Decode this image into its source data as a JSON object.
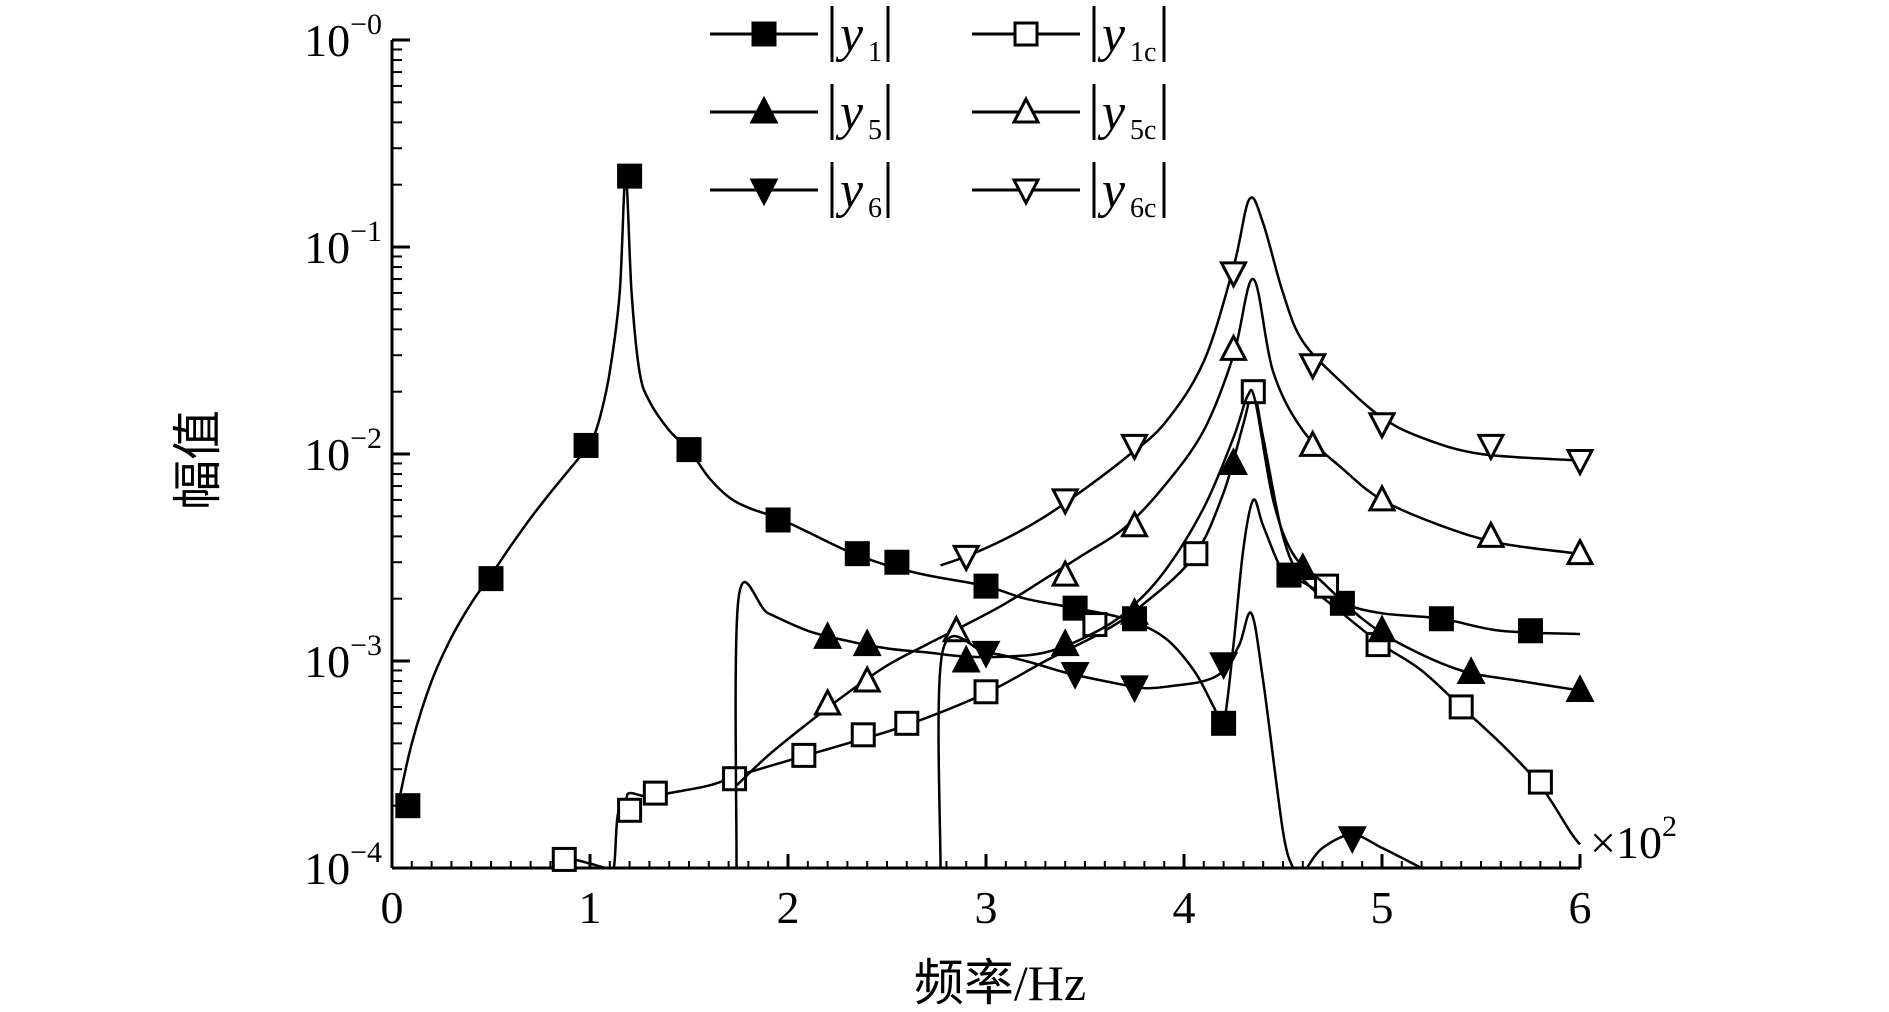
{
  "chart_data": {
    "type": "line",
    "title": "",
    "xlabel": "频率/Hz",
    "ylabel": "幅值",
    "x_multiplier": "×10",
    "x_multiplier_exp": "2",
    "xlim": [
      0,
      6
    ],
    "ylim": [
      0.0001,
      1
    ],
    "yscale": "log",
    "x_ticks": [
      {
        "value": 0,
        "label": "0"
      },
      {
        "value": 1,
        "label": "1"
      },
      {
        "value": 2,
        "label": "2"
      },
      {
        "value": 3,
        "label": "3"
      },
      {
        "value": 4,
        "label": "4"
      },
      {
        "value": 5,
        "label": "5"
      },
      {
        "value": 6,
        "label": "6"
      }
    ],
    "y_ticks": [
      {
        "value": 1,
        "base": "10",
        "exp": "−0"
      },
      {
        "value": 0.1,
        "base": "10",
        "exp": "−1"
      },
      {
        "value": 0.01,
        "base": "10",
        "exp": "−2"
      },
      {
        "value": 0.001,
        "base": "10",
        "exp": "−3"
      },
      {
        "value": 0.0001,
        "base": "10",
        "exp": "−4"
      }
    ],
    "grid": false,
    "legend_position": "top-center",
    "series": [
      {
        "name": "|y1|",
        "label_main": "y",
        "label_sub": "1",
        "marker": "square",
        "filled": true,
        "curve": [
          [
            0.03,
            0.0002
          ],
          [
            0.1,
            0.0004
          ],
          [
            0.2,
            0.0008
          ],
          [
            0.3,
            0.0013
          ],
          [
            0.4,
            0.0019
          ],
          [
            0.5,
            0.0026
          ],
          [
            0.6,
            0.0036
          ],
          [
            0.7,
            0.0049
          ],
          [
            0.8,
            0.0065
          ],
          [
            0.9,
            0.0085
          ],
          [
            0.95,
            0.0097
          ],
          [
            1.0,
            0.011
          ],
          [
            1.05,
            0.015
          ],
          [
            1.1,
            0.025
          ],
          [
            1.15,
            0.06
          ],
          [
            1.18,
            0.22
          ],
          [
            1.21,
            0.06
          ],
          [
            1.25,
            0.025
          ],
          [
            1.3,
            0.018
          ],
          [
            1.4,
            0.013
          ],
          [
            1.5,
            0.0105
          ],
          [
            1.6,
            0.0077
          ],
          [
            1.7,
            0.0062
          ],
          [
            1.8,
            0.0055
          ],
          [
            1.95,
            0.0049
          ],
          [
            2.1,
            0.0042
          ],
          [
            2.3,
            0.0034
          ],
          [
            2.5,
            0.0029
          ],
          [
            2.7,
            0.0026
          ],
          [
            3.0,
            0.0023
          ],
          [
            3.2,
            0.002
          ],
          [
            3.45,
            0.0018
          ],
          [
            3.7,
            0.0016
          ],
          [
            3.9,
            0.0013
          ],
          [
            4.05,
            0.0009
          ],
          [
            4.15,
            0.0006
          ],
          [
            4.2,
            0.0005
          ],
          [
            4.25,
            0.0012
          ],
          [
            4.3,
            0.0035
          ],
          [
            4.35,
            0.006
          ],
          [
            4.4,
            0.0045
          ],
          [
            4.5,
            0.0027
          ],
          [
            4.6,
            0.0024
          ],
          [
            4.8,
            0.0019
          ],
          [
            5.0,
            0.0017
          ],
          [
            5.3,
            0.0016
          ],
          [
            5.6,
            0.0014
          ],
          [
            6.0,
            0.00135
          ]
        ],
        "markers": [
          [
            0.08,
            0.0002
          ],
          [
            0.5,
            0.0025
          ],
          [
            0.98,
            0.011
          ],
          [
            1.2,
            0.22
          ],
          [
            1.5,
            0.0105
          ],
          [
            1.95,
            0.0048
          ],
          [
            2.35,
            0.0033
          ],
          [
            2.55,
            0.003
          ],
          [
            3.0,
            0.0023
          ],
          [
            3.45,
            0.0018
          ],
          [
            3.75,
            0.0016
          ],
          [
            4.2,
            0.0005
          ],
          [
            4.53,
            0.0026
          ],
          [
            4.8,
            0.0019
          ],
          [
            5.3,
            0.0016
          ],
          [
            5.75,
            0.0014
          ]
        ]
      },
      {
        "name": "|y1c|",
        "label_main": "y",
        "label_sub": "1c",
        "marker": "square",
        "filled": false,
        "curve": [
          [
            0.85,
            0.0001
          ],
          [
            0.9,
            0.00011
          ],
          [
            1.0,
            0.000105
          ],
          [
            1.08,
            0.0001
          ],
          [
            1.12,
            0.0001
          ],
          [
            1.14,
            0.00018
          ],
          [
            1.18,
            0.00021
          ],
          [
            1.2,
            0.00023
          ],
          [
            1.3,
            0.00022
          ],
          [
            1.4,
            0.00023
          ],
          [
            1.6,
            0.00025
          ],
          [
            1.75,
            0.00028
          ],
          [
            2.0,
            0.00033
          ],
          [
            2.3,
            0.0004
          ],
          [
            2.6,
            0.00049
          ],
          [
            3.0,
            0.0007
          ],
          [
            3.3,
            0.001
          ],
          [
            3.6,
            0.0014
          ],
          [
            3.8,
            0.0019
          ],
          [
            4.05,
            0.0032
          ],
          [
            4.2,
            0.0065
          ],
          [
            4.3,
            0.014
          ],
          [
            4.35,
            0.02
          ],
          [
            4.4,
            0.012
          ],
          [
            4.5,
            0.004
          ],
          [
            4.6,
            0.0025
          ],
          [
            4.8,
            0.0017
          ],
          [
            5.0,
            0.0012
          ],
          [
            5.2,
            0.0009
          ],
          [
            5.4,
            0.0006
          ],
          [
            5.6,
            0.0004
          ],
          [
            5.8,
            0.00025
          ],
          [
            5.95,
            0.00015
          ],
          [
            6.0,
            0.00013
          ]
        ],
        "markers": [
          [
            0.87,
            0.00011
          ],
          [
            1.2,
            0.00019
          ],
          [
            1.33,
            0.00023
          ],
          [
            1.73,
            0.00027
          ],
          [
            2.08,
            0.00035
          ],
          [
            2.38,
            0.00044
          ],
          [
            2.6,
            0.0005
          ],
          [
            3.0,
            0.00071
          ],
          [
            3.55,
            0.0015
          ],
          [
            4.06,
            0.0033
          ],
          [
            4.35,
            0.02
          ],
          [
            4.72,
            0.0023
          ],
          [
            4.98,
            0.0012
          ],
          [
            5.4,
            0.0006
          ],
          [
            5.8,
            0.00026
          ]
        ]
      },
      {
        "name": "|y5|",
        "label_main": "y",
        "label_sub": "5",
        "marker": "triangle-up",
        "filled": true,
        "curve": [
          [
            1.74,
            0.0001
          ],
          [
            1.75,
            0.002
          ],
          [
            1.9,
            0.0017
          ],
          [
            2.1,
            0.0014
          ],
          [
            2.3,
            0.00125
          ],
          [
            2.5,
            0.00115
          ],
          [
            2.7,
            0.0011
          ],
          [
            2.9,
            0.00105
          ],
          [
            3.1,
            0.00105
          ],
          [
            3.3,
            0.0011
          ],
          [
            3.5,
            0.0013
          ],
          [
            3.7,
            0.0017
          ],
          [
            3.9,
            0.0027
          ],
          [
            4.1,
            0.0055
          ],
          [
            4.25,
            0.012
          ],
          [
            4.32,
            0.019
          ],
          [
            4.36,
            0.018
          ],
          [
            4.45,
            0.006
          ],
          [
            4.55,
            0.0033
          ],
          [
            4.7,
            0.0024
          ],
          [
            4.9,
            0.0016
          ],
          [
            5.1,
            0.0012
          ],
          [
            5.4,
            0.0009
          ],
          [
            5.7,
            0.0008
          ],
          [
            6.0,
            0.00072
          ]
        ],
        "markers": [
          [
            2.2,
            0.0013
          ],
          [
            2.4,
            0.0012
          ],
          [
            2.9,
            0.001
          ],
          [
            3.4,
            0.0012
          ],
          [
            3.75,
            0.0017
          ],
          [
            4.25,
            0.009
          ],
          [
            4.6,
            0.0028
          ],
          [
            5.0,
            0.0014
          ],
          [
            5.45,
            0.00088
          ],
          [
            6.0,
            0.00072
          ]
        ]
      },
      {
        "name": "|y5c|",
        "label_main": "y",
        "label_sub": "5c",
        "marker": "triangle-up",
        "filled": false,
        "curve": [
          [
            1.74,
            0.00025
          ],
          [
            1.9,
            0.00035
          ],
          [
            2.1,
            0.0005
          ],
          [
            2.3,
            0.0007
          ],
          [
            2.5,
            0.00095
          ],
          [
            2.7,
            0.0012
          ],
          [
            2.9,
            0.0015
          ],
          [
            3.1,
            0.0019
          ],
          [
            3.3,
            0.0025
          ],
          [
            3.5,
            0.0033
          ],
          [
            3.7,
            0.0044
          ],
          [
            3.9,
            0.007
          ],
          [
            4.1,
            0.013
          ],
          [
            4.25,
            0.03
          ],
          [
            4.35,
            0.07
          ],
          [
            4.45,
            0.025
          ],
          [
            4.6,
            0.013
          ],
          [
            4.8,
            0.0085
          ],
          [
            5.0,
            0.006
          ],
          [
            5.3,
            0.0045
          ],
          [
            5.6,
            0.0037
          ],
          [
            6.0,
            0.0033
          ]
        ],
        "markers": [
          [
            2.2,
            0.00062
          ],
          [
            2.4,
            0.0008
          ],
          [
            2.85,
            0.0014
          ],
          [
            3.4,
            0.0026
          ],
          [
            3.75,
            0.0045
          ],
          [
            4.25,
            0.032
          ],
          [
            4.65,
            0.011
          ],
          [
            5.0,
            0.006
          ],
          [
            5.55,
            0.004
          ],
          [
            6.0,
            0.0033
          ]
        ]
      },
      {
        "name": "|y6|",
        "label_main": "y",
        "label_sub": "6",
        "marker": "triangle-down",
        "filled": true,
        "curve": [
          [
            2.77,
            0.0001
          ],
          [
            2.78,
            0.0011
          ],
          [
            3.0,
            0.0011
          ],
          [
            3.2,
            0.001
          ],
          [
            3.4,
            0.00088
          ],
          [
            3.6,
            0.0008
          ],
          [
            3.8,
            0.00074
          ],
          [
            3.95,
            0.00076
          ],
          [
            4.1,
            0.0008
          ],
          [
            4.2,
            0.0009
          ],
          [
            4.28,
            0.0012
          ],
          [
            4.34,
            0.0017
          ],
          [
            4.4,
            0.0008
          ],
          [
            4.5,
            0.00015
          ],
          [
            4.55,
            0.0001
          ]
        ],
        "curve2": [
          [
            4.62,
            0.0001
          ],
          [
            4.7,
            0.000125
          ],
          [
            4.85,
            0.000145
          ],
          [
            5.0,
            0.000125
          ],
          [
            5.2,
            0.0001
          ]
        ],
        "markers": [
          [
            3.0,
            0.0011
          ],
          [
            3.45,
            0.00087
          ],
          [
            3.75,
            0.00075
          ],
          [
            4.2,
            0.00097
          ],
          [
            4.85,
            0.00014
          ]
        ]
      },
      {
        "name": "|y6c|",
        "label_main": "y",
        "label_sub": "6c",
        "marker": "triangle-down",
        "filled": false,
        "curve": [
          [
            2.77,
            0.0029
          ],
          [
            2.9,
            0.0032
          ],
          [
            3.1,
            0.0039
          ],
          [
            3.3,
            0.005
          ],
          [
            3.5,
            0.0068
          ],
          [
            3.7,
            0.0095
          ],
          [
            3.9,
            0.014
          ],
          [
            4.1,
            0.028
          ],
          [
            4.25,
            0.08
          ],
          [
            4.33,
            0.17
          ],
          [
            4.4,
            0.13
          ],
          [
            4.5,
            0.06
          ],
          [
            4.6,
            0.035
          ],
          [
            4.8,
            0.022
          ],
          [
            5.0,
            0.015
          ],
          [
            5.2,
            0.012
          ],
          [
            5.5,
            0.01
          ],
          [
            6.0,
            0.0093
          ]
        ],
        "markers": [
          [
            2.9,
            0.0032
          ],
          [
            3.4,
            0.006
          ],
          [
            3.75,
            0.011
          ],
          [
            4.25,
            0.075
          ],
          [
            4.65,
            0.027
          ],
          [
            5.0,
            0.014
          ],
          [
            5.55,
            0.011
          ],
          [
            6.0,
            0.0093
          ]
        ]
      }
    ]
  }
}
